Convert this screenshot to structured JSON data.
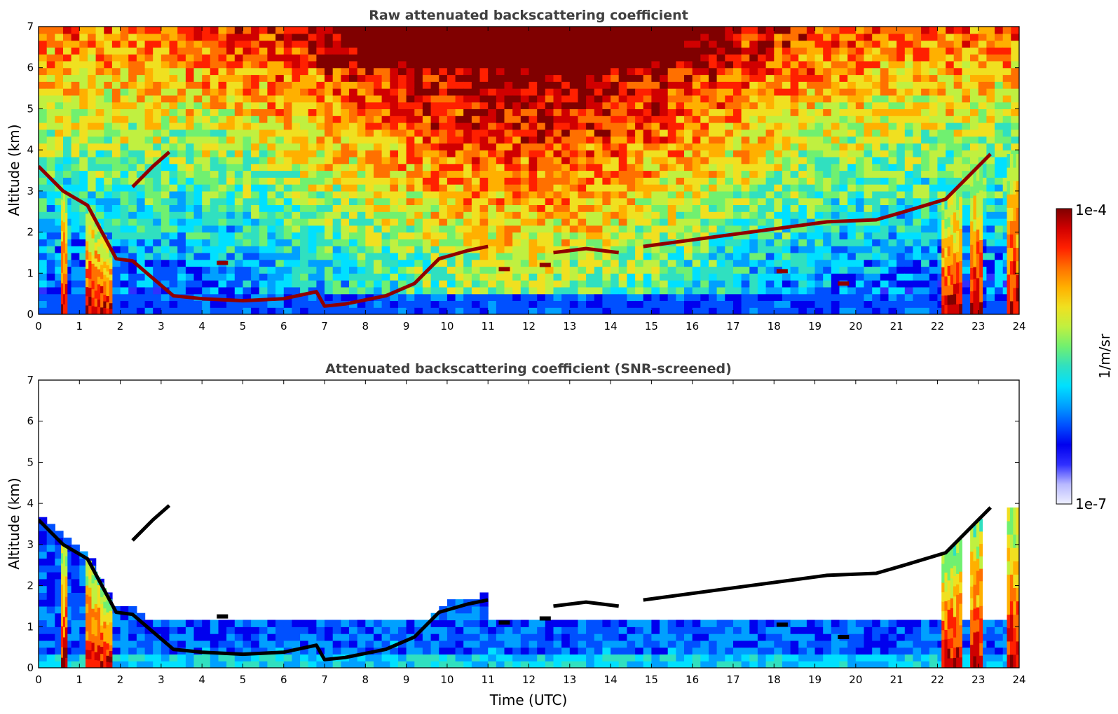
{
  "chart_data": [
    {
      "type": "heatmap",
      "title": "Raw attenuated backscattering coefficient",
      "xlabel": "",
      "ylabel": "Altitude (km)",
      "xlim": [
        0,
        24
      ],
      "ylim": [
        0,
        7
      ],
      "xticks": [
        "0",
        "1",
        "2",
        "3",
        "4",
        "5",
        "6",
        "7",
        "8",
        "9",
        "10",
        "11",
        "12",
        "13",
        "14",
        "15",
        "16",
        "17",
        "18",
        "19",
        "20",
        "21",
        "22",
        "23",
        "24"
      ],
      "yticks": [
        "0",
        "1",
        "2",
        "3",
        "4",
        "5",
        "6",
        "7"
      ],
      "screened": false
    },
    {
      "type": "heatmap",
      "title": "Attenuated backscattering coefficient (SNR-screened)",
      "xlabel": "Time (UTC)",
      "ylabel": "Altitude (km)",
      "xlim": [
        0,
        24
      ],
      "ylim": [
        0,
        7
      ],
      "xticks": [
        "0",
        "1",
        "2",
        "3",
        "4",
        "5",
        "6",
        "7",
        "8",
        "9",
        "10",
        "11",
        "12",
        "13",
        "14",
        "15",
        "16",
        "17",
        "18",
        "19",
        "20",
        "21",
        "22",
        "23",
        "24"
      ],
      "yticks": [
        "0",
        "1",
        "2",
        "3",
        "4",
        "5",
        "6",
        "7"
      ],
      "screened": true
    }
  ],
  "colorbar": {
    "label": "1/m/sr",
    "max_label": "1e-4",
    "min_label": "1e-7",
    "scale": "log",
    "colors": [
      "#eef0ff",
      "#b8b8ff",
      "#3030ff",
      "#0000ee",
      "#0050ff",
      "#00a0ff",
      "#00e0ff",
      "#30e0c0",
      "#70f070",
      "#c0f040",
      "#f0e020",
      "#ffb000",
      "#ff7000",
      "#ff2000",
      "#d00000",
      "#800000"
    ]
  },
  "features": {
    "cloud_base_layer": [
      [
        0,
        3.6
      ],
      [
        0.6,
        3.0
      ],
      [
        1.2,
        2.65
      ],
      [
        1.9,
        1.35
      ],
      [
        2.3,
        1.3
      ],
      [
        3.3,
        0.45
      ],
      [
        4,
        0.38
      ],
      [
        5,
        0.33
      ],
      [
        6,
        0.38
      ],
      [
        6.8,
        0.55
      ],
      [
        7.0,
        0.2
      ],
      [
        7.5,
        0.25
      ],
      [
        8.5,
        0.45
      ],
      [
        9.2,
        0.75
      ],
      [
        9.8,
        1.35
      ],
      [
        10.5,
        1.55
      ],
      [
        11,
        1.65
      ]
    ],
    "upper_clouds": [
      [
        2.3,
        3.1
      ],
      [
        2.8,
        3.6
      ],
      [
        3.2,
        3.95
      ],
      [
        12.6,
        1.5
      ],
      [
        13.4,
        1.6
      ],
      [
        14.2,
        1.5
      ],
      [
        14.8,
        1.65
      ],
      [
        19.3,
        2.25
      ],
      [
        20.5,
        2.3
      ],
      [
        21.2,
        2.5
      ],
      [
        22.2,
        2.8
      ],
      [
        22.8,
        3.4
      ],
      [
        23.3,
        3.9
      ]
    ],
    "precip_columns": [
      [
        0.55,
        0.7
      ],
      [
        1.15,
        1.8
      ],
      [
        22.1,
        22.6
      ],
      [
        22.8,
        23.1
      ],
      [
        23.7,
        24
      ]
    ],
    "low_clouds": [
      [
        4.5,
        1.25
      ],
      [
        11.4,
        1.1
      ],
      [
        12.4,
        1.2
      ],
      [
        18.2,
        1.05
      ],
      [
        19.7,
        0.75
      ]
    ]
  }
}
